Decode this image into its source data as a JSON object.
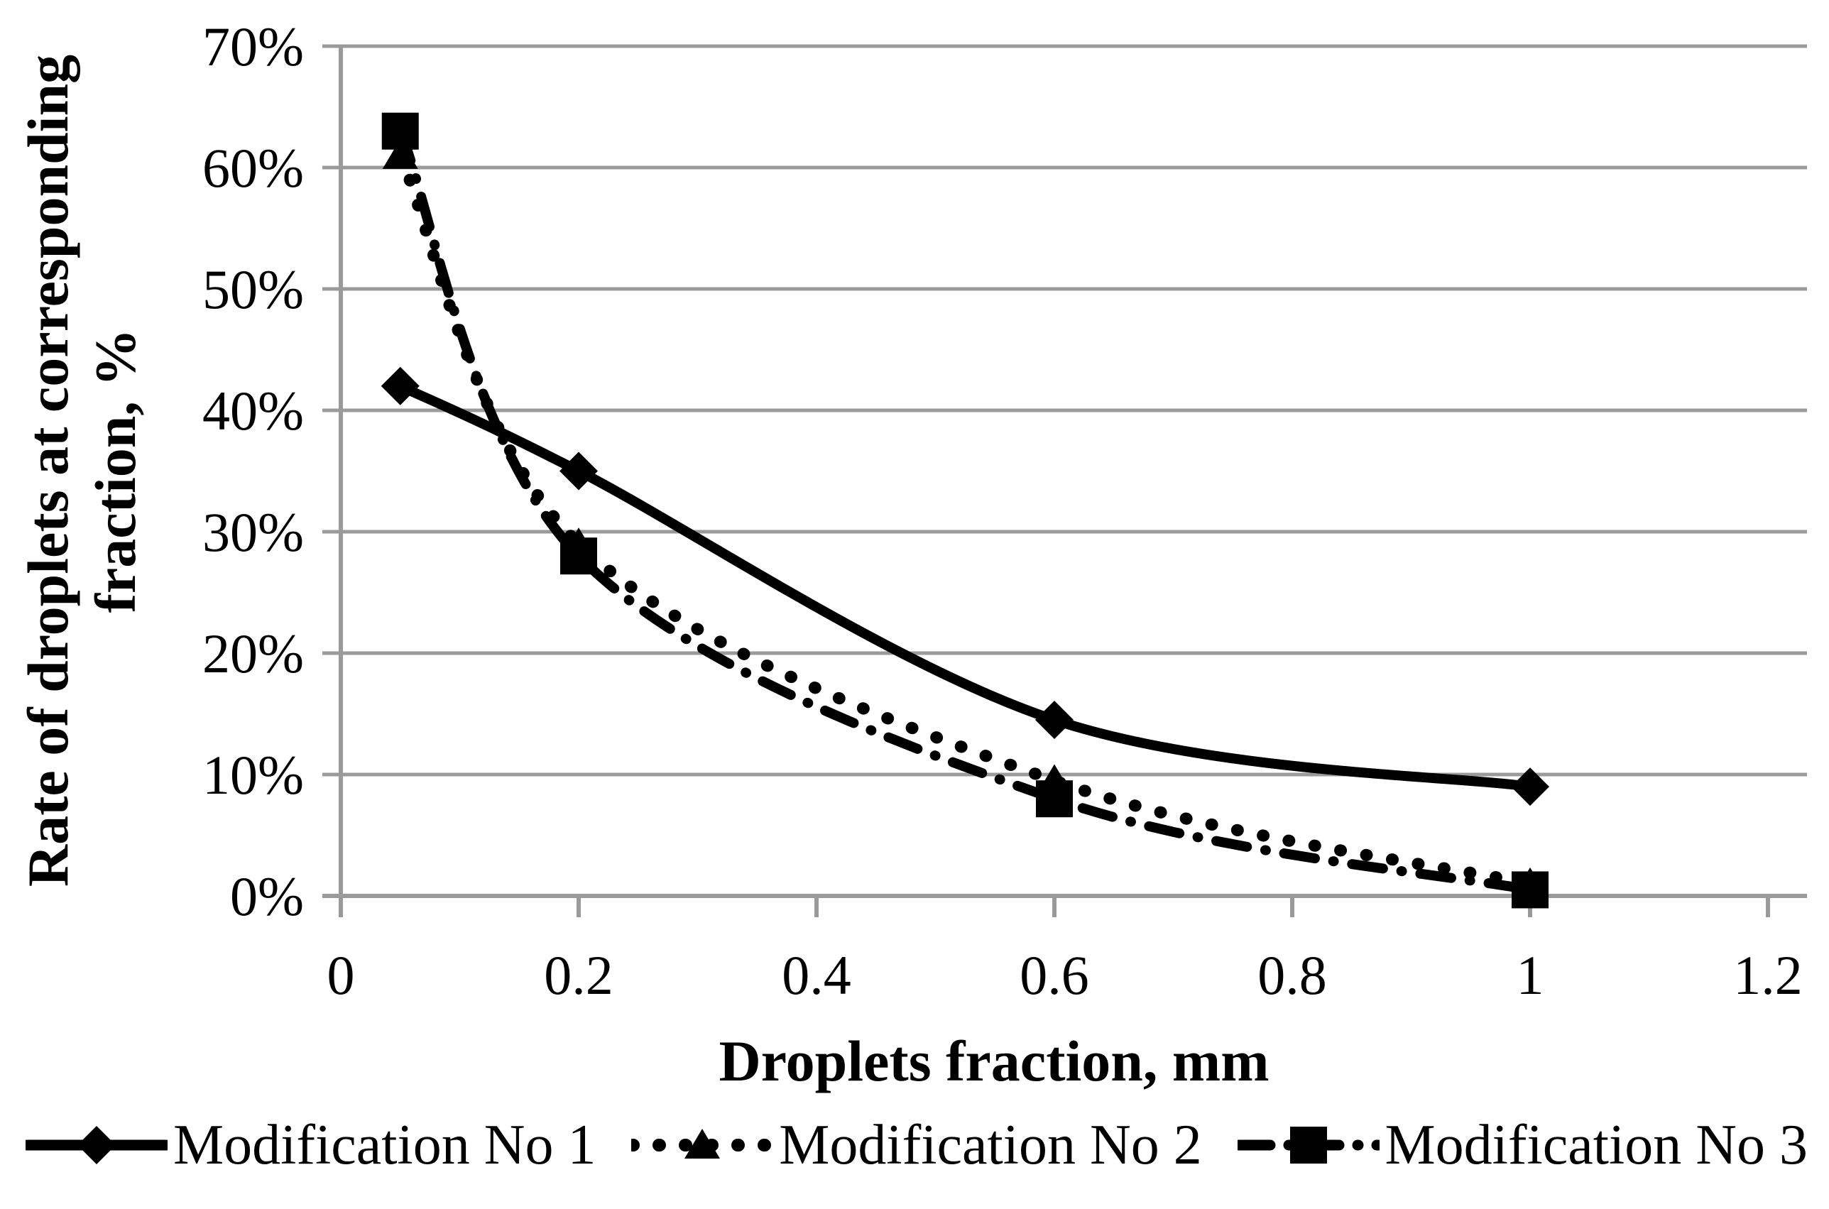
{
  "figure": {
    "background": "#ffffff",
    "ink_color": "#000000",
    "grid_color": "#9a9a9a"
  },
  "chart_data": {
    "type": "line",
    "title": "",
    "xlabel": "Droplets fraction, mm",
    "ylabel": "Rate of droplets at corresponding fraction, %",
    "ylabel_lines": [
      "Rate of droplets at corresponding",
      "fraction, %"
    ],
    "x": [
      0.05,
      0.2,
      0.6,
      1
    ],
    "series": [
      {
        "name": "Modification No 1",
        "marker": "diamond",
        "line_style": "solid",
        "values": [
          42,
          35,
          14.5,
          9
        ]
      },
      {
        "name": "Modification No 2",
        "marker": "triangle",
        "line_style": "dotted",
        "values": [
          61,
          29,
          9.5,
          1
        ]
      },
      {
        "name": "Modification No 3",
        "marker": "square",
        "line_style": "dashdot",
        "values": [
          63,
          28,
          8,
          0.5
        ]
      }
    ],
    "xlim": [
      0,
      1.2
    ],
    "ylim_percent": [
      0,
      70
    ],
    "xticks": {
      "values": [
        0,
        0.2,
        0.4,
        0.6,
        0.8,
        1,
        1.2
      ],
      "labels": [
        "0",
        "0.2",
        "0.4",
        "0.6",
        "0.8",
        "1",
        "1.2"
      ]
    },
    "yticks": {
      "values": [
        0,
        10,
        20,
        30,
        40,
        50,
        60,
        70
      ],
      "labels": [
        "0%",
        "10%",
        "20%",
        "30%",
        "40%",
        "50%",
        "60%",
        "70%"
      ]
    },
    "grid": "horizontal",
    "legend_position": "bottom",
    "smooth": true
  }
}
